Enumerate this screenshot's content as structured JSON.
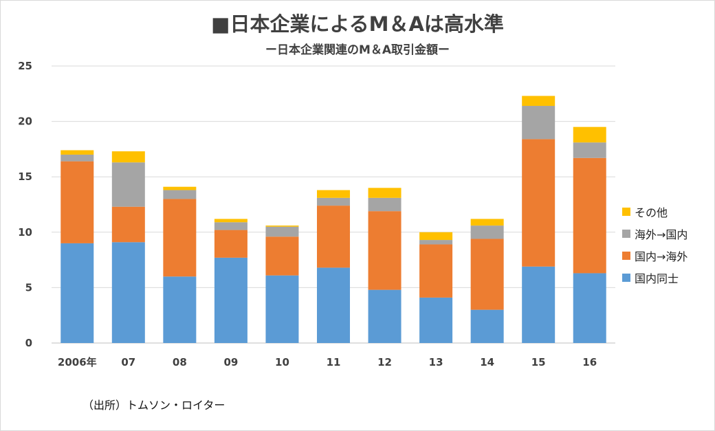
{
  "header": {
    "title": "■日本企業によるM＆Aは高水準",
    "subtitle": "ー日本企業関連のM＆A取引金額ー"
  },
  "source": "（出所）トムソン・ロイター",
  "chart_data": {
    "type": "bar",
    "stacked": true,
    "title": "■日本企業によるM＆Aは高水準",
    "subtitle": "ー日本企業関連のM＆A取引金額ー",
    "categories": [
      "2006年",
      "07",
      "08",
      "09",
      "10",
      "11",
      "12",
      "13",
      "14",
      "15",
      "16"
    ],
    "series": [
      {
        "name": "国内同士",
        "color": "#5b9bd5",
        "values": [
          9.0,
          9.1,
          6.0,
          7.7,
          6.1,
          6.8,
          4.8,
          4.1,
          3.0,
          6.9,
          6.3
        ]
      },
      {
        "name": "国内→海外",
        "color": "#ed7d31",
        "values": [
          7.4,
          3.2,
          7.0,
          2.5,
          3.5,
          5.6,
          7.1,
          4.8,
          6.4,
          11.5,
          10.4
        ]
      },
      {
        "name": "海外→国内",
        "color": "#a5a5a5",
        "values": [
          0.6,
          4.0,
          0.8,
          0.7,
          0.9,
          0.7,
          1.2,
          0.4,
          1.2,
          3.0,
          1.4
        ]
      },
      {
        "name": "その他",
        "color": "#ffc000",
        "values": [
          0.4,
          1.0,
          0.3,
          0.3,
          0.1,
          0.7,
          0.9,
          0.7,
          0.6,
          0.9,
          1.4
        ]
      }
    ],
    "ylim": [
      0,
      25
    ],
    "yticks": [
      0,
      5,
      10,
      15,
      20,
      25
    ],
    "grid": true,
    "legend_position": "right"
  }
}
